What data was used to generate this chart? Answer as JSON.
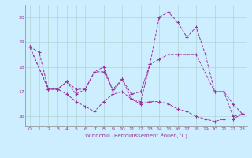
{
  "xlabel": "Windchill (Refroidissement éolien,°C)",
  "background_color": "#cceeff",
  "line_color": "#993399",
  "grid_color": "#aacccc",
  "xlim": [
    -0.5,
    23.5
  ],
  "ylim": [
    15.6,
    20.5
  ],
  "yticks": [
    16,
    17,
    18,
    19,
    20
  ],
  "xticks": [
    0,
    1,
    2,
    3,
    4,
    5,
    6,
    7,
    8,
    9,
    10,
    11,
    12,
    13,
    14,
    15,
    16,
    17,
    18,
    19,
    20,
    21,
    22,
    23
  ],
  "line1_x": [
    0,
    1,
    2,
    3,
    4,
    5,
    6,
    7,
    8,
    9,
    10,
    11,
    12,
    13,
    14,
    15,
    16,
    17,
    18,
    19,
    20,
    21,
    22,
    23
  ],
  "line1_y": [
    18.8,
    18.6,
    17.1,
    17.1,
    17.4,
    16.9,
    17.1,
    17.8,
    17.8,
    17.1,
    17.5,
    16.7,
    16.6,
    18.1,
    20.0,
    20.2,
    19.8,
    19.2,
    19.6,
    18.5,
    17.0,
    17.0,
    16.0,
    16.1
  ],
  "line2_x": [
    0,
    2,
    3,
    4,
    5,
    6,
    7,
    8,
    9,
    10,
    11,
    12,
    13,
    14,
    15,
    16,
    17,
    18,
    20,
    21,
    22,
    23
  ],
  "line2_y": [
    18.8,
    17.1,
    17.1,
    17.4,
    17.1,
    17.1,
    17.8,
    18.0,
    17.0,
    17.5,
    16.9,
    17.0,
    18.1,
    18.3,
    18.5,
    18.5,
    18.5,
    18.5,
    17.0,
    17.0,
    16.5,
    16.1
  ],
  "line3_x": [
    0,
    2,
    3,
    4,
    5,
    6,
    7,
    8,
    9,
    10,
    11,
    12,
    13,
    14,
    15,
    16,
    17,
    18,
    19,
    20,
    21,
    22,
    23
  ],
  "line3_y": [
    18.8,
    17.1,
    17.1,
    16.9,
    16.6,
    16.4,
    16.2,
    16.6,
    16.9,
    17.0,
    16.7,
    16.5,
    16.6,
    16.6,
    16.5,
    16.3,
    16.2,
    16.0,
    15.9,
    15.8,
    15.9,
    15.9,
    16.1
  ]
}
